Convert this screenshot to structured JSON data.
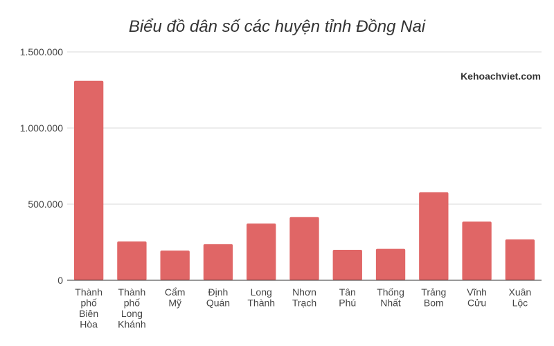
{
  "chart_data": {
    "type": "bar",
    "title": "Biểu đồ dân số các huyện tỉnh Đồng Nai",
    "xlabel": "",
    "ylabel": "",
    "categories": [
      [
        "Thành",
        "phố",
        "Biên",
        "Hòa"
      ],
      [
        "Thành",
        "phố",
        "Long",
        "Khánh"
      ],
      [
        "Cẩm",
        "Mỹ"
      ],
      [
        "Định",
        "Quán"
      ],
      [
        "Long",
        "Thành"
      ],
      [
        "Nhơn",
        "Trạch"
      ],
      [
        "Tân",
        "Phú"
      ],
      [
        "Thống",
        "Nhất"
      ],
      [
        "Trảng",
        "Bom"
      ],
      [
        "Vĩnh",
        "Cửu"
      ],
      [
        "Xuân",
        "Lộc"
      ]
    ],
    "values": [
      1310000,
      255000,
      195000,
      237000,
      373000,
      415000,
      200000,
      206000,
      578000,
      385000,
      268000
    ],
    "ylim": [
      0,
      1500000
    ],
    "yticks": [
      0,
      500000,
      1000000,
      1500000
    ],
    "ytick_labels": [
      "0",
      "500.000",
      "1.000.000",
      "1.500.000"
    ],
    "grid": true,
    "legend": "none",
    "bar_color": "#e06666"
  },
  "watermark": "Kehoachviet.com"
}
